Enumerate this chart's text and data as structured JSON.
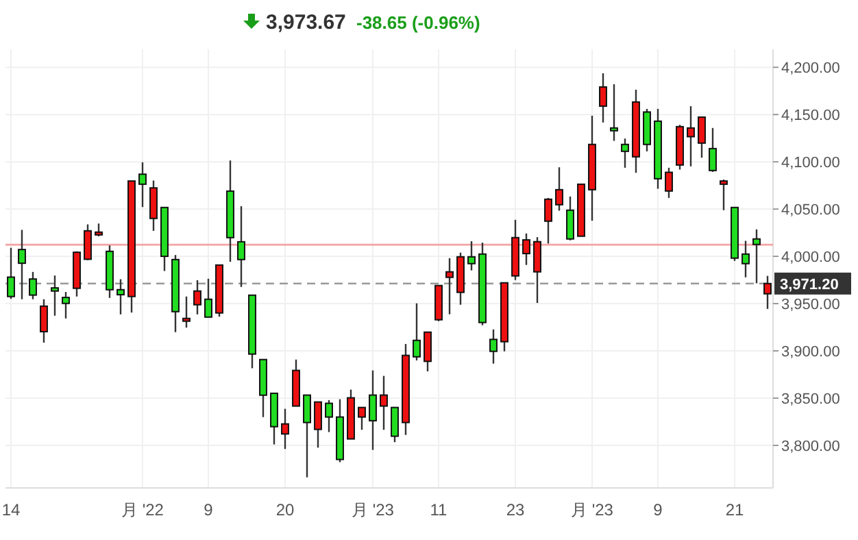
{
  "chart_data": {
    "type": "candlestick",
    "subtitle": "3,973.67",
    "annotations": [
      "-38.65 (-0.96%)"
    ],
    "categories": [
      "14",
      null,
      null,
      null,
      null,
      null,
      null,
      null,
      null,
      null,
      null,
      null,
      "月 '22",
      null,
      null,
      null,
      null,
      null,
      "9",
      null,
      null,
      null,
      null,
      null,
      null,
      "20",
      null,
      null,
      null,
      null,
      null,
      null,
      null,
      "月 '23",
      null,
      null,
      null,
      null,
      null,
      "11",
      null,
      null,
      null,
      null,
      null,
      null,
      "23",
      null,
      null,
      null,
      null,
      null,
      null,
      "月 '23",
      null,
      null,
      null,
      null,
      null,
      "9",
      null,
      null,
      null,
      null,
      null,
      null,
      "21",
      null,
      null,
      null
    ],
    "ohlc": [
      [
        3978,
        4009,
        3955,
        3957.5
      ],
      [
        4007.2,
        4028,
        3954.6,
        3992.7
      ],
      [
        3976,
        3983.5,
        3954.6,
        3959
      ],
      [
        3920.3,
        3954.6,
        3908.7,
        3947.3
      ],
      [
        3966.6,
        3979.7,
        3937.2,
        3963.3
      ],
      [
        3956.5,
        3962.3,
        3934.3,
        3950.2
      ],
      [
        3966.2,
        4005.3,
        3957.5,
        4004.3
      ],
      [
        3996.9,
        4033.8,
        3996,
        4027
      ],
      [
        4022.7,
        4034.7,
        4021.2,
        4025.6
      ],
      [
        4005.3,
        4011.6,
        3956,
        3964.7
      ],
      [
        3964.7,
        3975.8,
        3938.6,
        3959.4
      ],
      [
        3957.5,
        4079.7,
        3940.5,
        4079.7
      ],
      [
        4086.9,
        4099.5,
        4052.1,
        4076.3
      ],
      [
        4040.1,
        4080.2,
        4027,
        4072.4
      ],
      [
        4051.7,
        4051.7,
        3984.5,
        4000
      ],
      [
        3996.6,
        4001.4,
        3919.8,
        3941.5
      ],
      [
        3931.4,
        3957.5,
        3924.6,
        3934.3
      ],
      [
        3948.8,
        3974.8,
        3938.6,
        3963.3
      ],
      [
        3954.6,
        3976.3,
        3935.7,
        3935.7
      ],
      [
        3940.1,
        3990.8,
        3936.2,
        3990.8
      ],
      [
        4069,
        4101.4,
        3994.2,
        4019.8
      ],
      [
        4015.4,
        4053.1,
        3967.6,
        3996.6
      ],
      [
        3958.9,
        3958.9,
        3881.6,
        3896.6
      ],
      [
        3890.8,
        3890.8,
        3829.9,
        3853.1
      ],
      [
        3855.1,
        3855.1,
        3801,
        3819.8
      ],
      [
        3812.1,
        3838.7,
        3796.2,
        3822.7
      ],
      [
        3841.6,
        3890.8,
        3841.6,
        3879.3
      ],
      [
        3853.2,
        3853.2,
        3766.2,
        3824.2
      ],
      [
        3816.9,
        3845.9,
        3797.6,
        3845.9
      ],
      [
        3844.5,
        3847.9,
        3814.1,
        3830
      ],
      [
        3830,
        3848.8,
        3782.2,
        3785.1
      ],
      [
        3806.8,
        3859,
        3806.8,
        3850.3
      ],
      [
        3830,
        3840.1,
        3816.5,
        3840.1
      ],
      [
        3853.2,
        3879.3,
        3795.2,
        3826.1
      ],
      [
        3841.6,
        3873.5,
        3816.5,
        3853.2
      ],
      [
        3840.1,
        3840.1,
        3803.4,
        3809.7
      ],
      [
        3824.2,
        3907.3,
        3811.1,
        3895.2
      ],
      [
        3911.1,
        3950.3,
        3889.9,
        3893.7
      ],
      [
        3888.9,
        3919.8,
        3878.3,
        3919.8
      ],
      [
        3932.9,
        3969.1,
        3931.4,
        3969.1
      ],
      [
        3977.8,
        3998.1,
        3938.7,
        3983.6
      ],
      [
        3961.9,
        4003.9,
        3948.8,
        3999.5
      ],
      [
        3999.5,
        4016,
        3985.1,
        3992.3
      ],
      [
        4002.4,
        4014.5,
        3927.1,
        3930
      ],
      [
        3912.1,
        3922.7,
        3886.5,
        3899.5
      ],
      [
        3909.7,
        3972,
        3899.5,
        3972
      ],
      [
        3979.3,
        4038.6,
        3974.9,
        4019.8
      ],
      [
        4002.9,
        4024.2,
        3990.9,
        4017.4
      ],
      [
        3983.6,
        4020.3,
        3950.7,
        4015.5
      ],
      [
        4037.2,
        4061.8,
        4013.5,
        4060.4
      ],
      [
        4054.6,
        4094.2,
        4048.3,
        4070.5
      ],
      [
        4048.8,
        4063.3,
        4016.9,
        4018.4
      ],
      [
        4021.3,
        4076.3,
        4021.3,
        4076.3
      ],
      [
        4070.5,
        4148.8,
        4037.7,
        4118.4
      ],
      [
        4158.9,
        4193.7,
        4141.6,
        4179.2
      ],
      [
        4135.8,
        4182.1,
        4122.2,
        4132.9
      ],
      [
        4118.4,
        4124.6,
        4093.7,
        4111.1
      ],
      [
        4105.3,
        4176.3,
        4088.4,
        4163.3
      ],
      [
        4152.7,
        4156,
        4111.1,
        4118.4
      ],
      [
        4143,
        4156,
        4071.5,
        4082.1
      ],
      [
        4069.1,
        4093.7,
        4061.8,
        4088.9
      ],
      [
        4096.6,
        4139.1,
        4091.8,
        4137.2
      ],
      [
        4126.6,
        4158.9,
        4095.2,
        4135.8
      ],
      [
        4119.8,
        4147.3,
        4104.4,
        4147.3
      ],
      [
        4114,
        4135.8,
        4089.4,
        4090.8
      ],
      [
        4076.3,
        4081.2,
        4048.8,
        4079.7
      ],
      [
        4051.7,
        4051.7,
        3995.2,
        3998.1
      ],
      [
        4002.4,
        4016.4,
        3977.8,
        3992.3
      ],
      [
        4018.4,
        4028.5,
        3971.5,
        4012.6
      ],
      [
        3960.4,
        3979.3,
        3944.4,
        3971.2
      ]
    ],
    "ylim": [
      3755,
      4219
    ],
    "yticks": [
      {
        "value": 3800,
        "label": "3,800.00"
      },
      {
        "value": 3850,
        "label": "3,850.00"
      },
      {
        "value": 3900,
        "label": "3,900.00"
      },
      {
        "value": 3950,
        "label": "3,950.00"
      },
      {
        "value": 4000,
        "label": "4,000.00"
      },
      {
        "value": 4050,
        "label": "4,050.00"
      },
      {
        "value": 4100,
        "label": "4,100.00"
      },
      {
        "value": 4150,
        "label": "4,150.00"
      },
      {
        "value": 4200,
        "label": "4,200.00"
      }
    ],
    "grid": true,
    "ref_lines": [
      {
        "axis": "y",
        "value": 4012.32,
        "color": "#f4a3a3",
        "line_style": "solid"
      },
      {
        "axis": "y",
        "value": 3971.2,
        "label": "3,971.20",
        "color": "#999999",
        "line_style": "dashed"
      }
    ]
  }
}
